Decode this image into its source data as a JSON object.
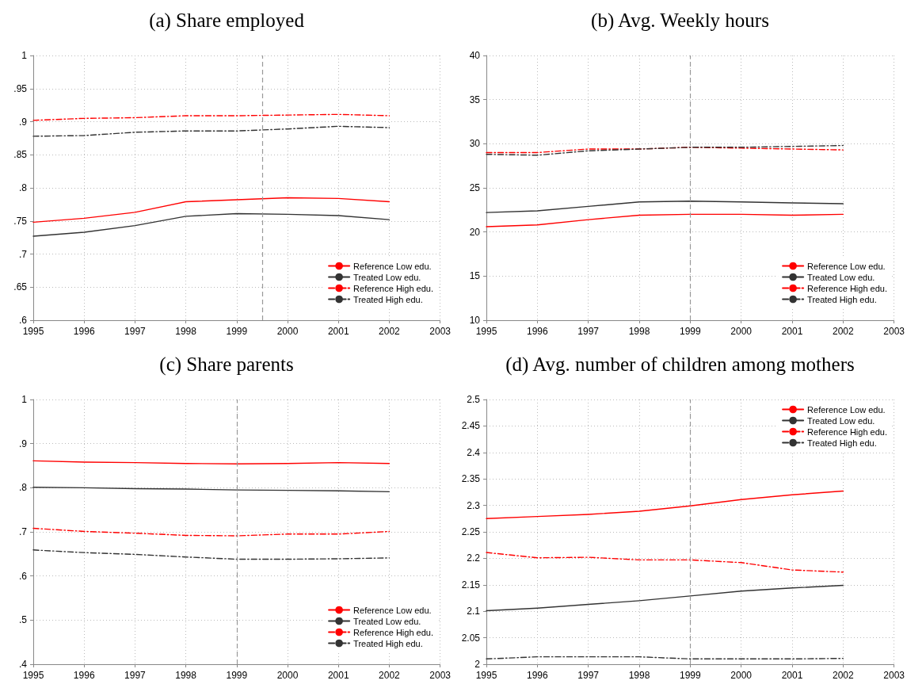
{
  "chart_data": [
    {
      "type": "line",
      "title": "(a) Share employed",
      "x": [
        1995,
        1996,
        1997,
        1998,
        1999,
        2000,
        2001,
        2002
      ],
      "xlim": [
        1995,
        2003
      ],
      "xticks": [
        1995,
        1996,
        1997,
        1998,
        1999,
        2000,
        2001,
        2002,
        2003
      ],
      "ylim": [
        0.6,
        1
      ],
      "yticks": [
        {
          "value": 0.6,
          "label": ".6"
        },
        {
          "value": 0.65,
          "label": ".65"
        },
        {
          "value": 0.7,
          "label": ".7"
        },
        {
          "value": 0.75,
          "label": ".75"
        },
        {
          "value": 0.8,
          "label": ".8"
        },
        {
          "value": 0.85,
          "label": ".85"
        },
        {
          "value": 0.9,
          "label": ".9"
        },
        {
          "value": 0.95,
          "label": ".95"
        },
        1
      ],
      "grid": true,
      "legend": "bottom right",
      "marker": "none",
      "ref_lines": [
        {
          "axis": "x",
          "value": 1999.5,
          "color": "#999999",
          "line_style": "dashed"
        }
      ],
      "series": [
        {
          "name": "Reference Low edu.",
          "color": "#ff0000",
          "line_style": "solid",
          "values": [
            0.748,
            0.754,
            0.763,
            0.779,
            0.782,
            0.785,
            0.784,
            0.779
          ]
        },
        {
          "name": "Treated Low edu.",
          "color": "#333333",
          "line_style": "solid",
          "values": [
            0.727,
            0.733,
            0.743,
            0.757,
            0.761,
            0.76,
            0.758,
            0.752
          ]
        },
        {
          "name": "Reference High edu.",
          "color": "#ff0000",
          "line_style": "dashed",
          "values": [
            0.902,
            0.905,
            0.906,
            0.909,
            0.909,
            0.91,
            0.911,
            0.909
          ]
        },
        {
          "name": "Treated High edu.",
          "color": "#333333",
          "line_style": "dashed",
          "values": [
            0.878,
            0.879,
            0.884,
            0.886,
            0.886,
            0.889,
            0.893,
            0.891
          ]
        }
      ]
    },
    {
      "type": "line",
      "title": "(b) Avg. Weekly hours",
      "x": [
        1995,
        1996,
        1997,
        1998,
        1999,
        2000,
        2001,
        2002
      ],
      "xlim": [
        1995,
        2003
      ],
      "xticks": [
        1995,
        1996,
        1997,
        1998,
        1999,
        2000,
        2001,
        2002,
        2003
      ],
      "ylim": [
        10,
        40
      ],
      "yticks": [
        10,
        15,
        20,
        25,
        30,
        35,
        40
      ],
      "grid": true,
      "legend": "bottom right",
      "marker": "none",
      "ref_lines": [
        {
          "axis": "x",
          "value": 1999,
          "color": "#999999",
          "line_style": "dashed"
        }
      ],
      "series": [
        {
          "name": "Reference Low edu.",
          "color": "#ff0000",
          "line_style": "solid",
          "values": [
            20.6,
            20.8,
            21.4,
            21.9,
            22.0,
            22.0,
            21.9,
            22.0
          ]
        },
        {
          "name": "Treated Low edu.",
          "color": "#333333",
          "line_style": "solid",
          "values": [
            22.2,
            22.4,
            22.9,
            23.4,
            23.5,
            23.4,
            23.3,
            23.2
          ]
        },
        {
          "name": "Reference High edu.",
          "color": "#ff0000",
          "line_style": "dashed",
          "values": [
            29.0,
            29.0,
            29.4,
            29.4,
            29.6,
            29.5,
            29.4,
            29.3
          ]
        },
        {
          "name": "Treated High edu.",
          "color": "#333333",
          "line_style": "dashed",
          "values": [
            28.8,
            28.7,
            29.2,
            29.4,
            29.6,
            29.6,
            29.7,
            29.8
          ]
        }
      ]
    },
    {
      "type": "line",
      "title": "(c) Share parents",
      "x": [
        1995,
        1996,
        1997,
        1998,
        1999,
        2000,
        2001,
        2002
      ],
      "xlim": [
        1995,
        2003
      ],
      "xticks": [
        1995,
        1996,
        1997,
        1998,
        1999,
        2000,
        2001,
        2002,
        2003
      ],
      "ylim": [
        0.4,
        1
      ],
      "yticks": [
        {
          "value": 0.4,
          "label": ".4"
        },
        {
          "value": 0.5,
          "label": ".5"
        },
        {
          "value": 0.6,
          "label": ".6"
        },
        {
          "value": 0.7,
          "label": ".7"
        },
        {
          "value": 0.8,
          "label": ".8"
        },
        {
          "value": 0.9,
          "label": ".9"
        },
        1
      ],
      "grid": true,
      "legend": "bottom right",
      "marker": "none",
      "ref_lines": [
        {
          "axis": "x",
          "value": 1999,
          "color": "#999999",
          "line_style": "dashed"
        }
      ],
      "series": [
        {
          "name": "Reference Low edu.",
          "color": "#ff0000",
          "line_style": "solid",
          "values": [
            0.861,
            0.858,
            0.857,
            0.855,
            0.854,
            0.855,
            0.857,
            0.855
          ]
        },
        {
          "name": "Treated Low edu.",
          "color": "#333333",
          "line_style": "solid",
          "values": [
            0.801,
            0.8,
            0.798,
            0.797,
            0.795,
            0.794,
            0.793,
            0.791
          ]
        },
        {
          "name": "Reference High edu.",
          "color": "#ff0000",
          "line_style": "dashed",
          "values": [
            0.708,
            0.701,
            0.697,
            0.692,
            0.691,
            0.695,
            0.695,
            0.701
          ]
        },
        {
          "name": "Treated High edu.",
          "color": "#333333",
          "line_style": "dashed",
          "values": [
            0.659,
            0.653,
            0.649,
            0.643,
            0.638,
            0.638,
            0.639,
            0.641
          ]
        }
      ]
    },
    {
      "type": "line",
      "title": "(d) Avg. number of children among mothers",
      "x": [
        1995,
        1996,
        1997,
        1998,
        1999,
        2000,
        2001,
        2002
      ],
      "xlim": [
        1995,
        2003
      ],
      "xticks": [
        1995,
        1996,
        1997,
        1998,
        1999,
        2000,
        2001,
        2002,
        2003
      ],
      "ylim": [
        2,
        2.5
      ],
      "yticks": [
        2,
        2.05,
        2.1,
        2.15,
        2.2,
        2.25,
        2.3,
        2.35,
        2.4,
        2.45,
        2.5
      ],
      "grid": true,
      "legend": "top right",
      "marker": "none",
      "ref_lines": [
        {
          "axis": "x",
          "value": 1999,
          "color": "#999999",
          "line_style": "dashed"
        }
      ],
      "series": [
        {
          "name": "Reference Low edu.",
          "color": "#ff0000",
          "line_style": "solid",
          "values": [
            2.275,
            2.279,
            2.283,
            2.289,
            2.299,
            2.311,
            2.32,
            2.327
          ]
        },
        {
          "name": "Treated Low edu.",
          "color": "#333333",
          "line_style": "solid",
          "values": [
            2.101,
            2.106,
            2.113,
            2.12,
            2.129,
            2.138,
            2.144,
            2.149
          ]
        },
        {
          "name": "Reference High edu.",
          "color": "#ff0000",
          "line_style": "dashed",
          "values": [
            2.211,
            2.201,
            2.202,
            2.197,
            2.197,
            2.192,
            2.178,
            2.174
          ]
        },
        {
          "name": "Treated High edu.",
          "color": "#333333",
          "line_style": "dashed",
          "values": [
            2.01,
            2.014,
            2.014,
            2.014,
            2.01,
            2.01,
            2.01,
            2.011
          ]
        }
      ]
    }
  ]
}
